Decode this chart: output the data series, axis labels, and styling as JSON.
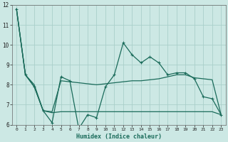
{
  "xlabel": "Humidex (Indice chaleur)",
  "background_color": "#cce8e4",
  "grid_color": "#aacfca",
  "line_color": "#1a6b5a",
  "x_values": [
    0,
    1,
    2,
    3,
    4,
    5,
    6,
    7,
    8,
    9,
    10,
    11,
    12,
    13,
    14,
    15,
    16,
    17,
    18,
    19,
    20,
    21,
    22,
    23
  ],
  "series1": [
    11.8,
    8.5,
    7.9,
    6.7,
    6.1,
    8.4,
    8.2,
    5.8,
    6.5,
    6.35,
    7.9,
    8.5,
    10.1,
    9.5,
    9.1,
    9.4,
    9.1,
    8.5,
    8.6,
    8.6,
    8.3,
    7.4,
    7.3,
    6.5
  ],
  "series2": [
    11.8,
    8.5,
    8.0,
    6.7,
    6.65,
    8.2,
    8.15,
    8.1,
    8.05,
    8.0,
    8.05,
    8.1,
    8.15,
    8.2,
    8.2,
    8.25,
    8.3,
    8.4,
    8.5,
    8.5,
    8.35,
    8.3,
    8.25,
    6.5
  ],
  "series3": [
    11.8,
    8.5,
    7.9,
    6.7,
    6.6,
    6.65,
    6.65,
    6.65,
    6.65,
    6.65,
    6.65,
    6.65,
    6.65,
    6.65,
    6.65,
    6.65,
    6.65,
    6.65,
    6.65,
    6.65,
    6.65,
    6.65,
    6.65,
    6.5
  ],
  "ylim": [
    6,
    12
  ],
  "xlim": [
    -0.5,
    23.5
  ],
  "yticks": [
    6,
    7,
    8,
    9,
    10,
    11,
    12
  ],
  "xticks": [
    0,
    1,
    2,
    3,
    4,
    5,
    6,
    7,
    8,
    9,
    10,
    11,
    12,
    13,
    14,
    15,
    16,
    17,
    18,
    19,
    20,
    21,
    22,
    23
  ]
}
